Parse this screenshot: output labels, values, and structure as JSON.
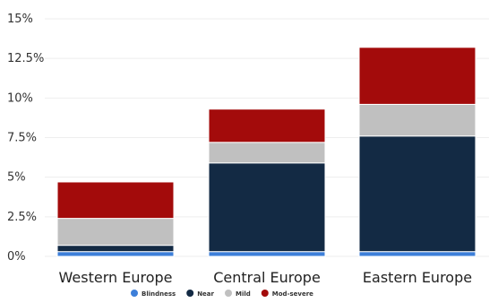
{
  "chart_data": {
    "type": "bar",
    "stacked": true,
    "categories": [
      "Western Europe",
      "Central Europe",
      "Eastern Europe"
    ],
    "series": [
      {
        "name": "Blindness",
        "values": [
          0.3,
          0.3,
          0.3
        ],
        "color": "#3d7fd9"
      },
      {
        "name": "Near",
        "values": [
          0.4,
          5.6,
          7.3
        ],
        "color": "#132a44"
      },
      {
        "name": "Mild",
        "values": [
          1.7,
          1.3,
          2.0
        ],
        "color": "#c0c0c0"
      },
      {
        "name": "Mod-severe",
        "values": [
          2.3,
          2.1,
          3.6
        ],
        "color": "#a30b0b"
      }
    ],
    "ylim": [
      0,
      15
    ],
    "y_ticks": [
      0,
      2.5,
      5,
      7.5,
      10,
      12.5,
      15
    ],
    "y_tick_labels": [
      "0%",
      "2.5%",
      "5%",
      "7.5%",
      "10%",
      "12.5%",
      "15%"
    ],
    "grid": true,
    "legend": "bottom"
  }
}
